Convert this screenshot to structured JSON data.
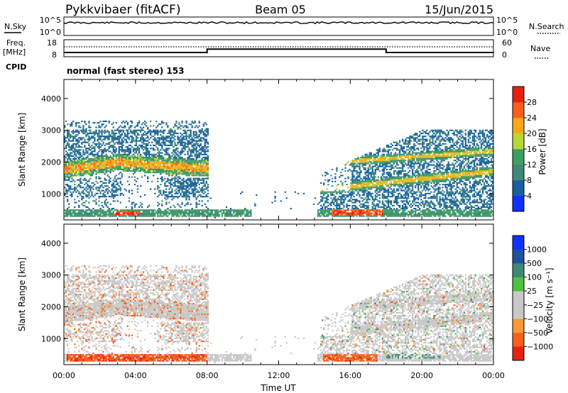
{
  "header": {
    "station": "Pykkvibaer (fitACF)",
    "beam": "Beam 05",
    "date": "15/Jun/2015"
  },
  "noise_panel": {
    "left_label": "N.Sky",
    "right_label": "N.Search",
    "left_ticks": [
      "10^5",
      "10^0"
    ],
    "right_ticks": [
      "10^5",
      "10^0"
    ]
  },
  "freq_panel": {
    "left_label_1": "Freq.",
    "left_label_2": "[MHz]",
    "right_label": "Nave",
    "left_ticks": [
      "18",
      "8"
    ],
    "right_ticks": [
      "60",
      "0"
    ],
    "freq_segments": [
      {
        "start": 0,
        "end": 8,
        "value": 10.5
      },
      {
        "start": 8,
        "end": 18,
        "value": 12.5
      },
      {
        "start": 18,
        "end": 24,
        "value": 10.5
      }
    ]
  },
  "cpid": {
    "label": "CPID",
    "text": "normal (fast stereo) 153"
  },
  "colors": {
    "power_scale": [
      "#1030ff",
      "#1860a0",
      "#408878",
      "#3da060",
      "#b8d838",
      "#f8a818",
      "#f86018",
      "#e82010"
    ],
    "velocity_scale": [
      "#e82010",
      "#f86018",
      "#f89838",
      "#c8c8c8",
      "#c8c8c8",
      "#50c040",
      "#408878",
      "#2050a0",
      "#1030ff"
    ]
  },
  "chart_data": [
    {
      "type": "heatmap",
      "xlabel": "",
      "ylabel": "Slant Range [km]",
      "x_ticks": [
        "00:00",
        "04:00",
        "08:00",
        "12:00",
        "16:00",
        "20:00",
        "00:00"
      ],
      "xlim": [
        0,
        24
      ],
      "ylim": [
        180,
        4600
      ],
      "y_ticks": [
        1000,
        2000,
        3000,
        4000
      ],
      "colorbar": {
        "label": "Power [dB]",
        "ticks": [
          "4",
          "8",
          "12",
          "16",
          "20",
          "24",
          "28"
        ],
        "range": [
          0,
          32
        ]
      }
    },
    {
      "type": "heatmap",
      "xlabel": "Time UT",
      "ylabel": "Slant Range [km]",
      "x_ticks": [
        "00:00",
        "04:00",
        "08:00",
        "12:00",
        "16:00",
        "20:00",
        "00:00"
      ],
      "xlim": [
        0,
        24
      ],
      "ylim": [
        180,
        4600
      ],
      "y_ticks": [
        1000,
        2000,
        3000,
        4000
      ],
      "colorbar": {
        "label": "Velocity [m s⁻¹]",
        "ticks": [
          "1000",
          "500",
          "100",
          "25",
          "−25",
          "−100",
          "−500",
          "−1000"
        ]
      }
    }
  ]
}
